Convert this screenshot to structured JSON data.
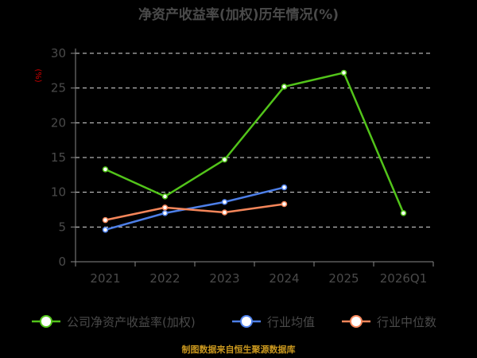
{
  "chart_data": {
    "type": "line",
    "title": "净资产收益率(加权)历年情况(%)",
    "ylabel": "(%)",
    "xlabel": "",
    "categories": [
      "2021",
      "2022",
      "2023",
      "2024",
      "2025",
      "2026Q1"
    ],
    "ylim": [
      0,
      30
    ],
    "yticks": [
      0,
      5,
      10,
      15,
      20,
      25,
      30
    ],
    "grid": "horizontal dashed",
    "legend_position": "bottom",
    "series": [
      {
        "name": "公司净资产收益率(加权)",
        "color": "#52c41a",
        "values": [
          13.3,
          9.4,
          14.7,
          25.2,
          27.2,
          7.0
        ]
      },
      {
        "name": "行业均值",
        "color": "#4d7fe8",
        "values": [
          4.6,
          7.0,
          8.6,
          10.7,
          null,
          null
        ]
      },
      {
        "name": "行业中位数",
        "color": "#f5865a",
        "values": [
          6.0,
          7.8,
          7.1,
          8.3,
          null,
          null
        ]
      }
    ]
  },
  "footer": {
    "source": "制图数据来自恒生聚源数据库"
  }
}
